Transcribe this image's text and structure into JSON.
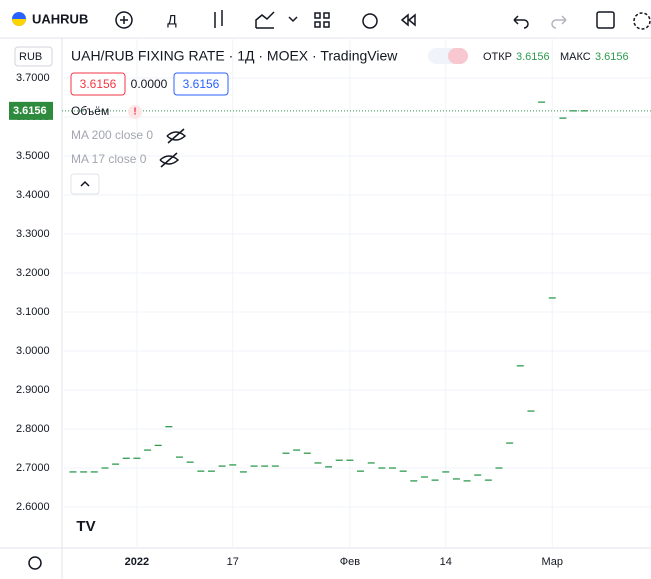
{
  "ui": {
    "symbol": "UAHRUB",
    "interval": "Д",
    "currency": "RUB",
    "legend_title": "UAH/RUB FIXING RATE · 1Д · MOEX · TradingView",
    "open_label": "ОТКР",
    "open_value": "3.6156",
    "high_label": "МАКС",
    "high_value": "3.6156",
    "bid": "3.6156",
    "spread": "0.0000",
    "ask": "3.6156",
    "volume": "Объём",
    "ma200": "MA 200 close 0",
    "ma17": "MA 17 close 0",
    "last_price": "3.6156"
  },
  "chart_data": {
    "type": "dash",
    "color": "#2e9b4f",
    "grid": true,
    "categories": [
      null,
      null,
      null,
      null,
      null,
      null,
      "2022",
      null,
      null,
      null,
      null,
      null,
      null,
      null,
      null,
      "17",
      null,
      null,
      null,
      null,
      null,
      null,
      null,
      null,
      null,
      null,
      "Фев",
      null,
      null,
      null,
      null,
      null,
      null,
      null,
      null,
      "14",
      null,
      null,
      null,
      null,
      null,
      null,
      null,
      null,
      null,
      "Мар",
      null,
      null,
      null
    ],
    "values": [
      2.69,
      2.69,
      2.69,
      2.7,
      2.71,
      2.725,
      2.725,
      2.746,
      2.758,
      2.806,
      2.728,
      2.715,
      2.692,
      2.692,
      2.705,
      2.708,
      2.69,
      2.705,
      2.705,
      2.705,
      2.738,
      2.746,
      2.738,
      2.713,
      2.703,
      2.72,
      2.72,
      2.692,
      2.713,
      2.7,
      2.7,
      2.692,
      2.667,
      2.677,
      2.669,
      2.69,
      2.672,
      2.667,
      2.682,
      2.669,
      2.7,
      2.764,
      2.962,
      2.846,
      3.638,
      3.136,
      3.597,
      3.6156,
      3.6156
    ],
    "ylim": [
      2.495,
      3.787
    ],
    "yticks": [
      {
        "value": 2.6,
        "label": "2.6000"
      },
      {
        "value": 2.7,
        "label": "2.7000"
      },
      {
        "value": 2.8,
        "label": "2.8000"
      },
      {
        "value": 2.9,
        "label": "2.9000"
      },
      {
        "value": 3.0,
        "label": "3.0000"
      },
      {
        "value": 3.1,
        "label": "3.1000"
      },
      {
        "value": 3.2,
        "label": "3.2000"
      },
      {
        "value": 3.3,
        "label": "3.3000"
      },
      {
        "value": 3.4,
        "label": "3.4000"
      },
      {
        "value": 3.5,
        "label": "3.5000"
      },
      {
        "value": 3.6,
        "label": "3.6000"
      },
      {
        "value": 3.7,
        "label": "3.7000"
      }
    ]
  }
}
